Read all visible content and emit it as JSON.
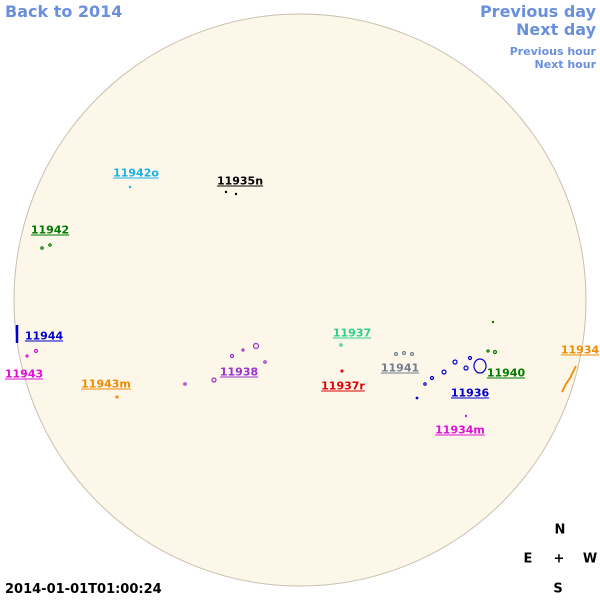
{
  "nav": {
    "back": "Back to 2014",
    "previous_day": "Previous day",
    "next_day": "Next day",
    "previous_hour": "Previous hour",
    "next_hour": "Next hour"
  },
  "regions": [
    {
      "label": "11942o",
      "color": "#1ab0e8"
    },
    {
      "label": "11935n",
      "color": "#000000"
    },
    {
      "label": "11942",
      "color": "#007a00"
    },
    {
      "label": "11944",
      "color": "#0000cc"
    },
    {
      "label": "11943",
      "color": "#e010d8"
    },
    {
      "label": "11943m",
      "color": "#f08c00"
    },
    {
      "label": "11938",
      "color": "#9932cc"
    },
    {
      "label": "11937",
      "color": "#2fd08a"
    },
    {
      "label": "11937r",
      "color": "#e00000"
    },
    {
      "label": "11941",
      "color": "#708090"
    },
    {
      "label": "11940",
      "color": "#007a00"
    },
    {
      "label": "11936",
      "color": "#0000cc"
    },
    {
      "label": "11934",
      "color": "#f08c00"
    },
    {
      "label": "11934m",
      "color": "#e010d8"
    }
  ],
  "compass": {
    "north": "N",
    "east": "E",
    "center": "+",
    "west": "W",
    "south": "S"
  },
  "timestamp": "2014-01-01T01:00:24"
}
